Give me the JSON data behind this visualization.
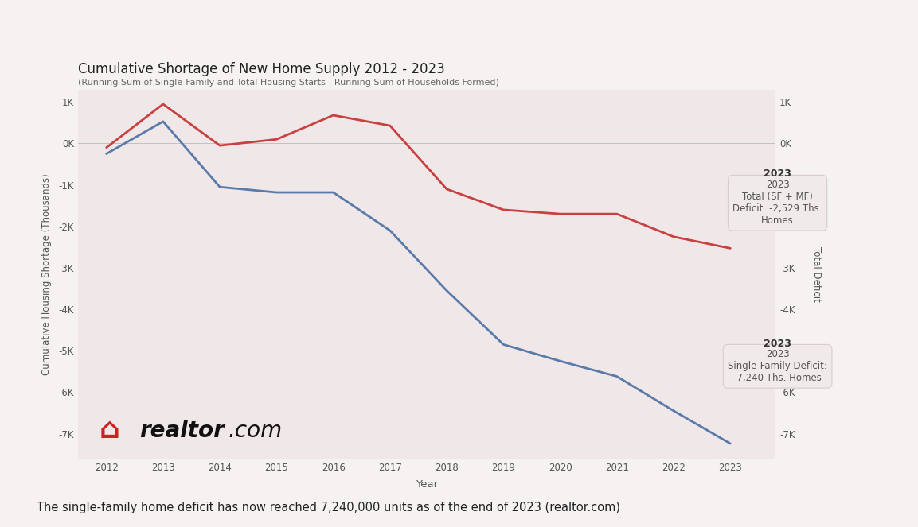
{
  "title": "Cumulative Shortage of New Home Supply 2012 - 2023",
  "subtitle": "(Running Sum of Single-Family and Total Housing Starts - Running Sum of Households Formed)",
  "xlabel": "Year",
  "ylabel_left": "Cumulative Housing Shortage (Thousands)",
  "ylabel_right": "Total Deficit",
  "years": [
    2012,
    2013,
    2014,
    2015,
    2016,
    2017,
    2018,
    2019,
    2020,
    2021,
    2022,
    2023
  ],
  "blue_data": [
    -250,
    530,
    -1050,
    -1180,
    -1180,
    -2100,
    -3550,
    -4850,
    -5250,
    -5620,
    -6450,
    -7240
  ],
  "red_data": [
    -100,
    950,
    -50,
    100,
    680,
    430,
    -1100,
    -1600,
    -1700,
    -1700,
    -2250,
    -2529
  ],
  "blue_color": "#5a7aaa",
  "red_color": "#c94040",
  "bg_color": "#f7f2f2",
  "plot_bg": "#f0e8e8",
  "outer_bg": "#f7f2f2",
  "ann_box_bg": "#f0eaea",
  "ann_box_edge": "#d8cccc",
  "footer_text": "The single-family home deficit has now reached 7,240,000 units as of the end of 2023 (realtor.com)",
  "realtor_red": "#cc2222",
  "text_color": "#555555",
  "ylim_min": -7600,
  "ylim_max": 1300,
  "yticks": [
    1000,
    0,
    -1000,
    -2000,
    -3000,
    -4000,
    -5000,
    -6000,
    -7000
  ],
  "ytick_labels": [
    "1K",
    "0K",
    "-1K",
    "-2K",
    "-3K",
    "-4K",
    "-5K",
    "-6K",
    "-7K"
  ],
  "ann_red_year": "2023",
  "ann_red_line2": "Total (SF + MF)",
  "ann_red_line3": "Deficit: -2,529 Ths.",
  "ann_red_line4": "Homes",
  "ann_blue_year": "2023",
  "ann_blue_line2": "Single-Family Deficit:",
  "ann_blue_line3": "-7,240 Ths. Homes"
}
